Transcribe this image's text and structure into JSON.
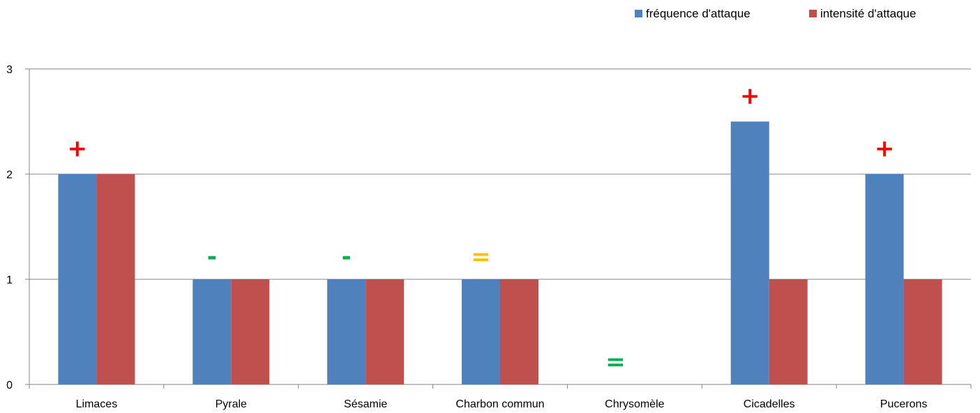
{
  "chart_data": {
    "type": "bar",
    "categories": [
      "Limaces",
      "Pyrale",
      "Sésamie",
      "Charbon commun",
      "Chrysomèle",
      "Cicadelles",
      "Pucerons"
    ],
    "series": [
      {
        "name": "fréquence d'attaque",
        "color": "#4F81BD",
        "values": [
          2,
          1,
          1,
          1,
          0,
          2.5,
          2
        ]
      },
      {
        "name": "intensité d'attaque",
        "color": "#C0504D",
        "values": [
          2,
          1,
          1,
          1,
          0,
          1,
          1
        ]
      }
    ],
    "ylim": [
      0,
      3
    ],
    "yticks": [
      0,
      1,
      2,
      3
    ],
    "grid": true,
    "legend_position": "top-right",
    "annotations": [
      {
        "category": "Limaces",
        "symbol": "+",
        "color": "#FF0000",
        "y": 2.25
      },
      {
        "category": "Pyrale",
        "symbol": "-",
        "color": "#00B050",
        "y": 1.22
      },
      {
        "category": "Sésamie",
        "symbol": "-",
        "color": "#00B050",
        "y": 1.22
      },
      {
        "category": "Charbon commun",
        "symbol": "=",
        "color": "#FFC000",
        "y": 1.22
      },
      {
        "category": "Chrysomèle",
        "symbol": "=",
        "color": "#00B050",
        "y": 0.22
      },
      {
        "category": "Cicadelles",
        "symbol": "+",
        "color": "#FF0000",
        "y": 2.75
      },
      {
        "category": "Pucerons",
        "symbol": "+",
        "color": "#FF0000",
        "y": 2.25
      }
    ]
  }
}
